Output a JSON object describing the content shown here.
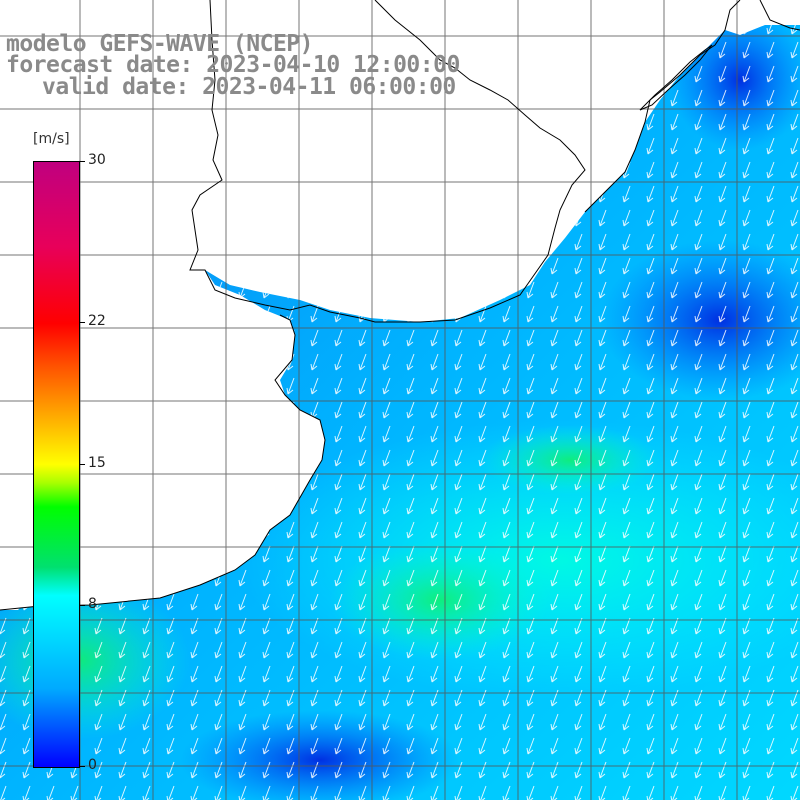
{
  "header": {
    "line1": "modelo GEFS-WAVE (NCEP)",
    "line2": "forecast date: 2023-04-10 12:00:00",
    "line3": "valid date: 2023-04-11 06:00:00"
  },
  "colorbar": {
    "unit": "[m/s]",
    "min": 0,
    "max": 30,
    "ticks": [
      {
        "value": 30,
        "label": "30"
      },
      {
        "value": 22,
        "label": "22"
      },
      {
        "value": 15,
        "label": "15"
      },
      {
        "value": 8,
        "label": "8"
      },
      {
        "value": 0,
        "label": "0"
      }
    ],
    "colors": [
      "#0000ff",
      "#00aaff",
      "#00ffff",
      "#00ff00",
      "#ffff00",
      "#ff0000",
      "#c0007f"
    ]
  },
  "map": {
    "field": "wind speed",
    "field_colors": {
      "low": "#0050f0",
      "mid": "#00c8ff",
      "high": "#00ffb0"
    },
    "land_color": "#ffffff",
    "coastline_color": "#000000",
    "grid_color": "#555555",
    "arrow_color": "#ffffff",
    "wind_direction": "from north-east"
  }
}
